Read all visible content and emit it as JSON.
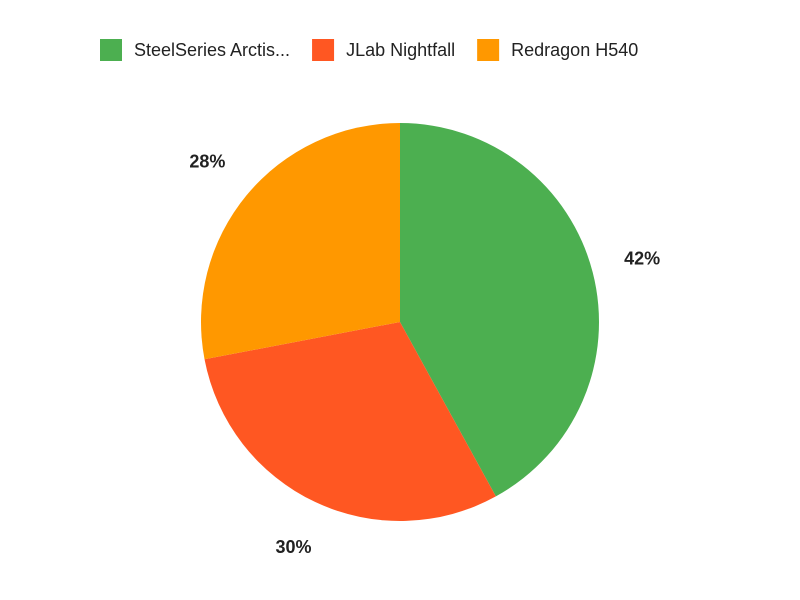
{
  "chart_data": {
    "type": "pie",
    "categories": [
      "SteelSeries Arctis...",
      "JLab Nightfall",
      "Redragon H540"
    ],
    "values": [
      42,
      30,
      28
    ],
    "value_labels": [
      "42%",
      "30%",
      "28%"
    ],
    "colors": [
      "#4caf50",
      "#ff5722",
      "#ff9800"
    ],
    "legend": "top"
  }
}
